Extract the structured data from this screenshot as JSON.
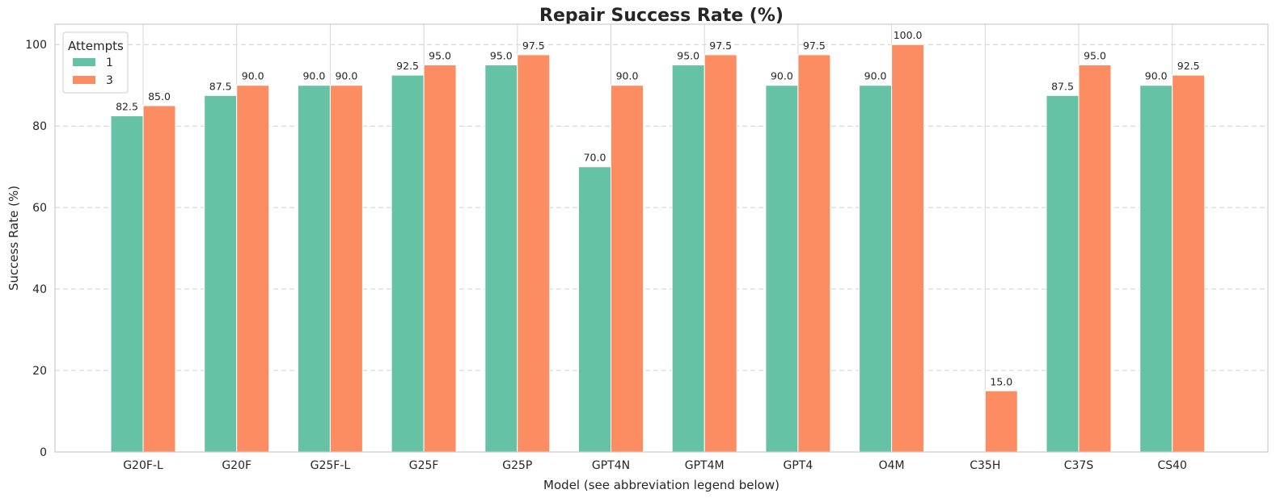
{
  "chart_data": {
    "type": "bar",
    "title": "Repair Success Rate (%)",
    "xlabel": "Model (see abbreviation legend below)",
    "ylabel": "Success Rate (%)",
    "ylim": [
      0,
      105
    ],
    "yticks": [
      0,
      20,
      40,
      60,
      80,
      100
    ],
    "grid": "y dashed, x solid at category centers",
    "legend": {
      "title": "Attempts",
      "placement": "top-left"
    },
    "categories": [
      "G20F-L",
      "G20F",
      "G25F-L",
      "G25F",
      "G25P",
      "GPT4N",
      "GPT4M",
      "GPT4",
      "O4M",
      "C35H",
      "C37S",
      "CS40"
    ],
    "series": [
      {
        "name": "1",
        "color": "#66c2a5",
        "values": [
          82.5,
          87.5,
          90.0,
          92.5,
          95.0,
          70.0,
          95.0,
          90.0,
          90.0,
          null,
          87.5,
          90.0
        ],
        "labels": [
          "82.5",
          "87.5",
          "90.0",
          "92.5",
          "95.0",
          "70.0",
          "95.0",
          "90.0",
          "90.0",
          "",
          "87.5",
          "90.0"
        ]
      },
      {
        "name": "3",
        "color": "#fc8d62",
        "values": [
          85.0,
          90.0,
          90.0,
          95.0,
          97.5,
          90.0,
          97.5,
          97.5,
          100.0,
          15.0,
          95.0,
          92.5
        ],
        "labels": [
          "85.0",
          "90.0",
          "90.0",
          "95.0",
          "97.5",
          "90.0",
          "97.5",
          "97.5",
          "100.0",
          "15.0",
          "95.0",
          "92.5"
        ]
      }
    ]
  }
}
